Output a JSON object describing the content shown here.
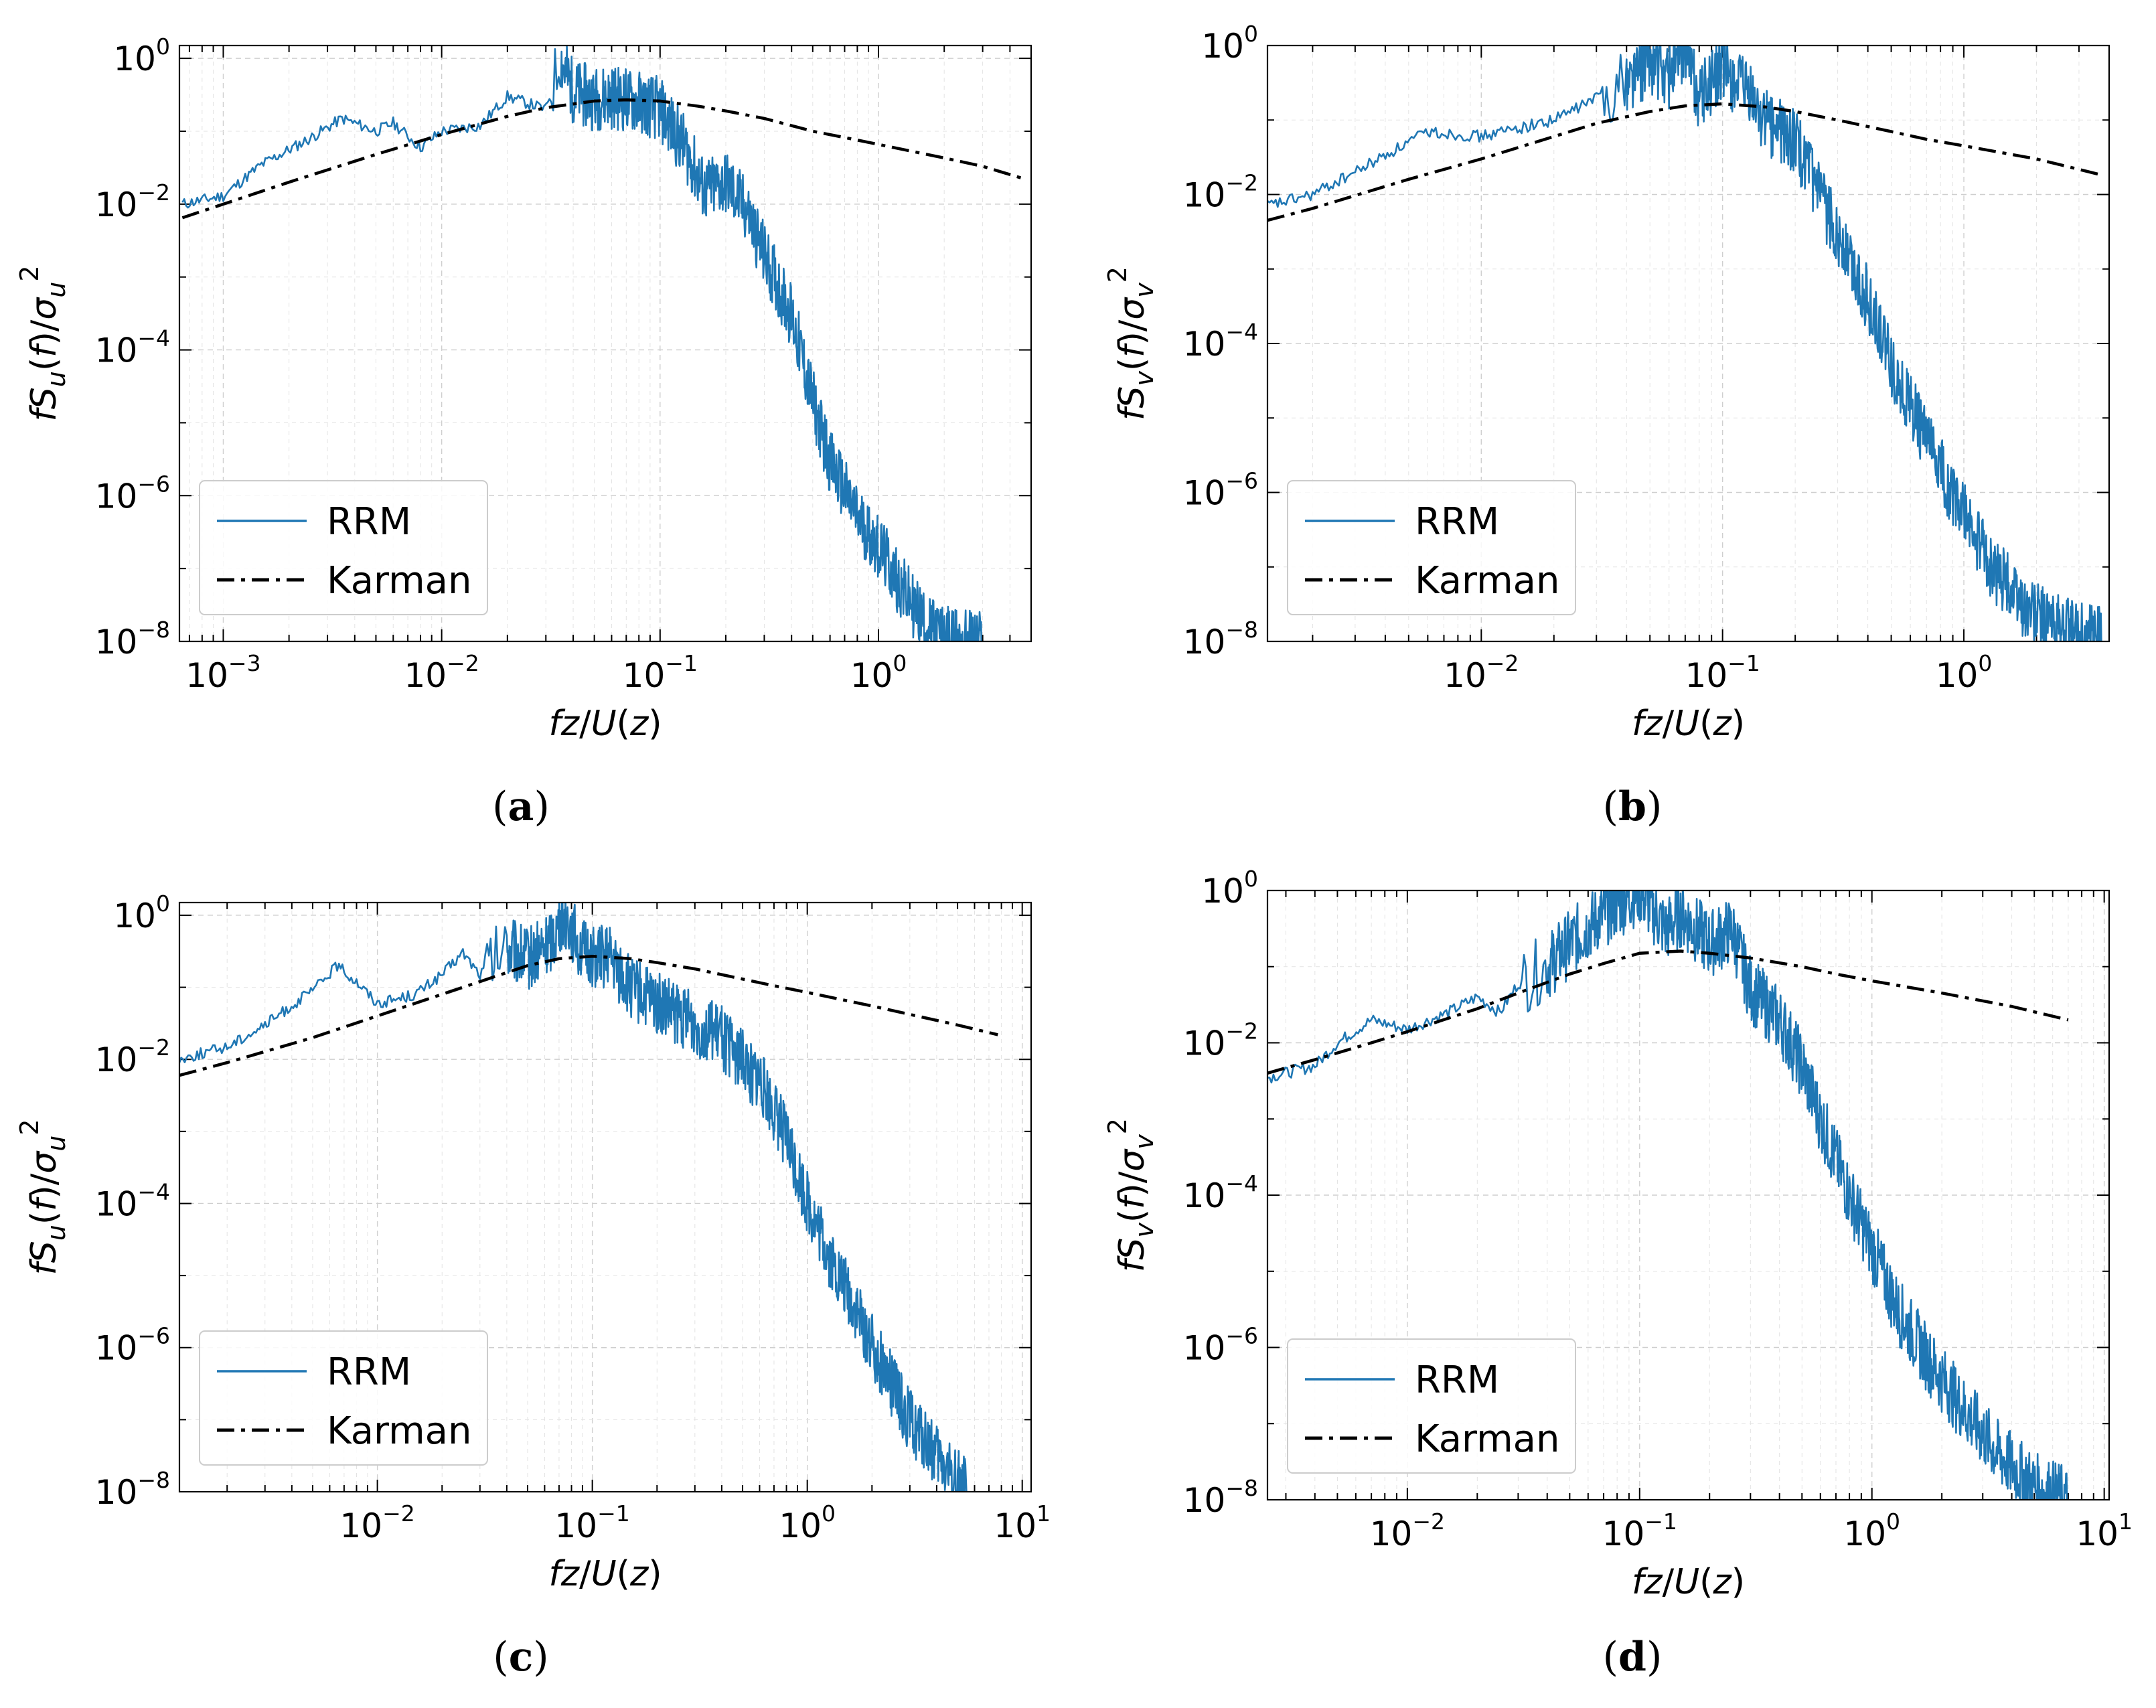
{
  "colors": {
    "rrm": "#1f77b4",
    "karman": "#000000",
    "grid": "#cfcfcf"
  },
  "chart_data": [
    {
      "type": "line",
      "caption": "a",
      "xlabel": "fz/U(z)",
      "ylabel": "fS_u(f)/σ_u^2",
      "x_scale": "log",
      "y_scale": "log",
      "xlim": [
        0.00063,
        5.0
      ],
      "ylim": [
        1e-08,
        1.5
      ],
      "x_ticks": [
        {
          "base": "10",
          "exp": "−3",
          "value": 0.001
        },
        {
          "base": "10",
          "exp": "−2",
          "value": 0.01
        },
        {
          "base": "10",
          "exp": "−1",
          "value": 0.1
        },
        {
          "base": "10",
          "exp": "0",
          "value": 1
        }
      ],
      "y_ticks": [
        {
          "base": "10",
          "exp": "−8",
          "value": 1e-08
        },
        {
          "base": "10",
          "exp": "−6",
          "value": 1e-06
        },
        {
          "base": "10",
          "exp": "−4",
          "value": 0.0001
        },
        {
          "base": "10",
          "exp": "−2",
          "value": 0.01
        },
        {
          "base": "10",
          "exp": "0",
          "value": 1
        }
      ],
      "legend": {
        "position": "lower-left",
        "entries": [
          "RRM",
          "Karman"
        ]
      },
      "grid": true,
      "series": [
        {
          "name": "RRM",
          "style": "solid",
          "x": [
            0.00065,
            0.001,
            0.0015,
            0.0025,
            0.0035,
            0.005,
            0.006,
            0.008,
            0.01,
            0.015,
            0.02,
            0.03,
            0.035,
            0.04,
            0.05,
            0.06,
            0.08,
            0.1,
            0.13,
            0.16,
            0.2,
            0.25,
            0.3,
            0.4,
            0.5,
            0.6,
            0.8,
            1.0,
            1.3,
            1.7,
            2.2,
            3.0
          ],
          "y": [
            0.01,
            0.013,
            0.035,
            0.08,
            0.15,
            0.1,
            0.13,
            0.06,
            0.1,
            0.12,
            0.3,
            0.2,
            1.0,
            0.35,
            0.28,
            0.3,
            0.25,
            0.2,
            0.06,
            0.015,
            0.02,
            0.008,
            0.002,
            0.0003,
            2e-05,
            3e-06,
            5e-07,
            2e-07,
            5e-08,
            1.5e-08,
            1e-08,
            1e-08
          ]
        },
        {
          "name": "Karman",
          "style": "dashdot",
          "x": [
            0.00065,
            0.001,
            0.002,
            0.005,
            0.01,
            0.02,
            0.03,
            0.05,
            0.07,
            0.1,
            0.15,
            0.2,
            0.3,
            0.5,
            0.7,
            1.0,
            2.0,
            3.0,
            4.7
          ],
          "y": [
            0.0065,
            0.01,
            0.02,
            0.048,
            0.09,
            0.16,
            0.21,
            0.26,
            0.27,
            0.26,
            0.22,
            0.19,
            0.15,
            0.1,
            0.082,
            0.066,
            0.043,
            0.033,
            0.022
          ]
        }
      ]
    },
    {
      "type": "line",
      "caption": "b",
      "xlabel": "fz/U(z)",
      "ylabel": "fS_v(f)/σ_v^2",
      "x_scale": "log",
      "y_scale": "log",
      "xlim": [
        0.0013,
        4.0
      ],
      "ylim": [
        1e-08,
        1.0
      ],
      "x_ticks": [
        {
          "base": "10",
          "exp": "−2",
          "value": 0.01
        },
        {
          "base": "10",
          "exp": "−1",
          "value": 0.1
        },
        {
          "base": "10",
          "exp": "0",
          "value": 1
        }
      ],
      "y_ticks": [
        {
          "base": "10",
          "exp": "−8",
          "value": 1e-08
        },
        {
          "base": "10",
          "exp": "−6",
          "value": 1e-06
        },
        {
          "base": "10",
          "exp": "−4",
          "value": 0.0001
        },
        {
          "base": "10",
          "exp": "−2",
          "value": 0.01
        },
        {
          "base": "10",
          "exp": "0",
          "value": 1
        }
      ],
      "legend": {
        "position": "lower-left",
        "entries": [
          "RRM",
          "Karman"
        ]
      },
      "grid": true,
      "series": [
        {
          "name": "RRM",
          "style": "solid",
          "x": [
            0.0013,
            0.002,
            0.003,
            0.006,
            0.01,
            0.02,
            0.03,
            0.04,
            0.05,
            0.06,
            0.07,
            0.08,
            0.1,
            0.13,
            0.15,
            0.2,
            0.25,
            0.3,
            0.4,
            0.5,
            0.6,
            0.8,
            1.0,
            1.3,
            1.8,
            2.5,
            3.8
          ],
          "y": [
            0.007,
            0.01,
            0.02,
            0.07,
            0.06,
            0.1,
            0.2,
            0.35,
            0.6,
            0.4,
            1.0,
            0.2,
            0.5,
            0.2,
            0.1,
            0.05,
            0.01,
            0.003,
            0.0004,
            5e-05,
            1.5e-05,
            2e-06,
            5e-07,
            1e-07,
            3e-08,
            1.5e-08,
            1e-08
          ]
        },
        {
          "name": "Karman",
          "style": "dashdot",
          "x": [
            0.0013,
            0.002,
            0.005,
            0.01,
            0.02,
            0.03,
            0.05,
            0.07,
            0.1,
            0.15,
            0.2,
            0.3,
            0.5,
            0.7,
            1.0,
            2.0,
            3.8
          ],
          "y": [
            0.0045,
            0.0065,
            0.016,
            0.03,
            0.06,
            0.09,
            0.13,
            0.155,
            0.165,
            0.15,
            0.13,
            0.1,
            0.07,
            0.055,
            0.045,
            0.03,
            0.018
          ]
        }
      ]
    },
    {
      "type": "line",
      "caption": "c",
      "xlabel": "fz/U(z)",
      "ylabel": "fS_u(f)/σ_u^2",
      "x_scale": "log",
      "y_scale": "log",
      "xlim": [
        0.0012,
        11.0
      ],
      "ylim": [
        1e-08,
        1.5
      ],
      "x_ticks": [
        {
          "base": "10",
          "exp": "−2",
          "value": 0.01
        },
        {
          "base": "10",
          "exp": "−1",
          "value": 0.1
        },
        {
          "base": "10",
          "exp": "0",
          "value": 1
        },
        {
          "base": "10",
          "exp": "1",
          "value": 10
        }
      ],
      "y_ticks": [
        {
          "base": "10",
          "exp": "−8",
          "value": 1e-08
        },
        {
          "base": "10",
          "exp": "−6",
          "value": 1e-06
        },
        {
          "base": "10",
          "exp": "−4",
          "value": 0.0001
        },
        {
          "base": "10",
          "exp": "−2",
          "value": 0.01
        },
        {
          "base": "10",
          "exp": "0",
          "value": 1
        }
      ],
      "legend": {
        "position": "lower-left",
        "entries": [
          "RRM",
          "Karman"
        ]
      },
      "grid": true,
      "series": [
        {
          "name": "RRM",
          "style": "solid",
          "x": [
            0.0012,
            0.002,
            0.003,
            0.005,
            0.0065,
            0.008,
            0.01,
            0.015,
            0.02,
            0.025,
            0.03,
            0.04,
            0.05,
            0.06,
            0.075,
            0.09,
            0.12,
            0.15,
            0.2,
            0.3,
            0.4,
            0.6,
            0.8,
            1.0,
            1.3,
            1.7,
            2.2,
            3.0,
            4.0,
            5.5
          ],
          "y": [
            0.01,
            0.015,
            0.03,
            0.09,
            0.2,
            0.12,
            0.06,
            0.08,
            0.15,
            0.3,
            0.15,
            0.35,
            0.25,
            0.35,
            1.0,
            0.3,
            0.25,
            0.1,
            0.06,
            0.03,
            0.02,
            0.005,
            0.0008,
            0.0001,
            1.5e-05,
            3e-06,
            6e-07,
            1e-07,
            3e-08,
            1e-08
          ]
        },
        {
          "name": "Karman",
          "style": "dashdot",
          "x": [
            0.0012,
            0.002,
            0.005,
            0.01,
            0.02,
            0.03,
            0.05,
            0.07,
            0.1,
            0.15,
            0.2,
            0.3,
            0.5,
            0.7,
            1.0,
            2.0,
            3.0,
            5.0,
            7.7
          ],
          "y": [
            0.006,
            0.009,
            0.02,
            0.04,
            0.08,
            0.12,
            0.2,
            0.25,
            0.27,
            0.25,
            0.22,
            0.18,
            0.13,
            0.105,
            0.085,
            0.055,
            0.042,
            0.03,
            0.022
          ]
        }
      ]
    },
    {
      "type": "line",
      "caption": "d",
      "xlabel": "fz/U(z)",
      "ylabel": "fS_v(f)/σ_v^2",
      "x_scale": "log",
      "y_scale": "log",
      "xlim": [
        0.0025,
        10.5
      ],
      "ylim": [
        1e-08,
        1.0
      ],
      "x_ticks": [
        {
          "base": "10",
          "exp": "−2",
          "value": 0.01
        },
        {
          "base": "10",
          "exp": "−1",
          "value": 0.1
        },
        {
          "base": "10",
          "exp": "0",
          "value": 1
        },
        {
          "base": "10",
          "exp": "1",
          "value": 10
        }
      ],
      "y_ticks": [
        {
          "base": "10",
          "exp": "−8",
          "value": 1e-08
        },
        {
          "base": "10",
          "exp": "−6",
          "value": 1e-06
        },
        {
          "base": "10",
          "exp": "−4",
          "value": 0.0001
        },
        {
          "base": "10",
          "exp": "−2",
          "value": 0.01
        },
        {
          "base": "10",
          "exp": "0",
          "value": 1
        }
      ],
      "legend": {
        "position": "lower-left",
        "entries": [
          "RRM",
          "Karman"
        ]
      },
      "grid": true,
      "series": [
        {
          "name": "RRM",
          "style": "solid",
          "x": [
            0.0025,
            0.004,
            0.005,
            0.007,
            0.01,
            0.015,
            0.02,
            0.025,
            0.03,
            0.04,
            0.05,
            0.07,
            0.1,
            0.13,
            0.15,
            0.2,
            0.25,
            0.3,
            0.4,
            0.5,
            0.6,
            0.8,
            1.0,
            1.3,
            1.8,
            2.5,
            3.5,
            5.0,
            7.0
          ],
          "y": [
            0.0035,
            0.005,
            0.01,
            0.02,
            0.015,
            0.025,
            0.04,
            0.025,
            0.06,
            0.1,
            0.2,
            0.5,
            1.0,
            0.3,
            0.5,
            0.2,
            0.3,
            0.05,
            0.02,
            0.005,
            0.001,
            0.0001,
            2e-05,
            3e-06,
            6e-07,
            1.5e-07,
            4e-08,
            1.5e-08,
            1e-08
          ]
        },
        {
          "name": "Karman",
          "style": "dashdot",
          "x": [
            0.0025,
            0.004,
            0.007,
            0.01,
            0.02,
            0.03,
            0.05,
            0.07,
            0.1,
            0.15,
            0.2,
            0.3,
            0.5,
            0.7,
            1.0,
            2.0,
            4.0,
            7.0
          ],
          "y": [
            0.004,
            0.006,
            0.01,
            0.014,
            0.028,
            0.045,
            0.08,
            0.11,
            0.15,
            0.16,
            0.15,
            0.13,
            0.1,
            0.08,
            0.065,
            0.045,
            0.03,
            0.02
          ]
        }
      ]
    }
  ]
}
